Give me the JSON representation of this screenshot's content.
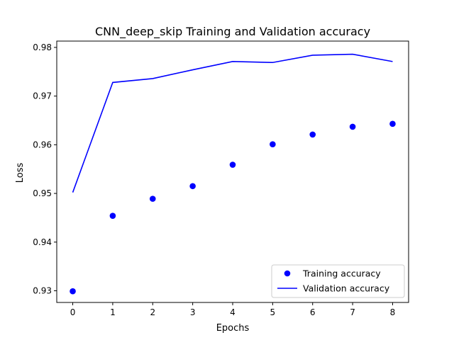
{
  "chart_data": {
    "type": "line",
    "title": "CNN_deep_skip Training and Validation accuracy",
    "xlabel": "Epochs",
    "ylabel": "Loss",
    "x": [
      0,
      1,
      2,
      3,
      4,
      5,
      6,
      7,
      8
    ],
    "xlim": [
      -0.4,
      8.4
    ],
    "ylim": [
      0.9276,
      0.9813
    ],
    "xticks": [
      "0",
      "1",
      "2",
      "3",
      "4",
      "5",
      "6",
      "7",
      "8"
    ],
    "yticks": [
      "0.93",
      "0.94",
      "0.95",
      "0.96",
      "0.97",
      "0.98"
    ],
    "grid": false,
    "legend_position": "lower right",
    "series": [
      {
        "name": "Training accuracy",
        "style": "markers",
        "color": "#0000ff",
        "values": [
          0.9299,
          0.9454,
          0.9489,
          0.9515,
          0.9559,
          0.9601,
          0.9621,
          0.9637,
          0.9643
        ]
      },
      {
        "name": "Validation accuracy",
        "style": "line",
        "color": "#0000ff",
        "values": [
          0.9502,
          0.9728,
          0.9736,
          0.9754,
          0.9771,
          0.9769,
          0.9784,
          0.9786,
          0.9771
        ]
      }
    ]
  }
}
